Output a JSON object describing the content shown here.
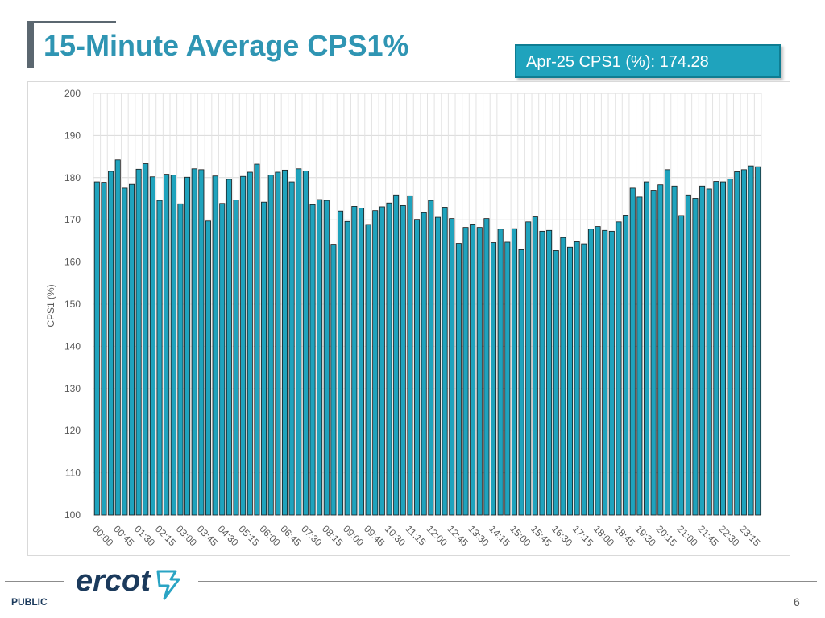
{
  "header": {
    "title": "15-Minute Average CPS1%",
    "summary": "Apr-25 CPS1 (%): 174.28"
  },
  "colors": {
    "title": "#2f95b3",
    "bar_fill": "#1fa3bd",
    "bar_stroke": "#1a1a1a",
    "summary_box": "#1fa3bd",
    "logo": "#1b3a5c",
    "logo_accent": "#2aa4c4"
  },
  "chart_data": {
    "type": "bar",
    "title": "",
    "xlabel": "",
    "ylabel": "CPS1 (%)",
    "ylim": [
      100,
      200
    ],
    "yticks": [
      100,
      110,
      120,
      130,
      140,
      150,
      160,
      170,
      180,
      190,
      200
    ],
    "grid": true,
    "legend": "none",
    "tick_labels": [
      "00:00",
      "00:45",
      "01:30",
      "02:15",
      "03:00",
      "03:45",
      "04:30",
      "05:15",
      "06:00",
      "06:45",
      "07:30",
      "08:15",
      "09:00",
      "09:45",
      "10:30",
      "11:15",
      "12:00",
      "12:45",
      "13:30",
      "14:15",
      "15:00",
      "15:45",
      "16:30",
      "17:15",
      "18:00",
      "18:45",
      "19:30",
      "20:15",
      "21:00",
      "21:45",
      "22:30",
      "23:15"
    ],
    "tick_every": 3,
    "categories": [
      "00:00",
      "00:15",
      "00:30",
      "00:45",
      "01:00",
      "01:15",
      "01:30",
      "01:45",
      "02:00",
      "02:15",
      "02:30",
      "02:45",
      "03:00",
      "03:15",
      "03:30",
      "03:45",
      "04:00",
      "04:15",
      "04:30",
      "04:45",
      "05:00",
      "05:15",
      "05:30",
      "05:45",
      "06:00",
      "06:15",
      "06:30",
      "06:45",
      "07:00",
      "07:15",
      "07:30",
      "07:45",
      "08:00",
      "08:15",
      "08:30",
      "08:45",
      "09:00",
      "09:15",
      "09:30",
      "09:45",
      "10:00",
      "10:15",
      "10:30",
      "10:45",
      "11:00",
      "11:15",
      "11:30",
      "11:45",
      "12:00",
      "12:15",
      "12:30",
      "12:45",
      "13:00",
      "13:15",
      "13:30",
      "13:45",
      "14:00",
      "14:15",
      "14:30",
      "14:45",
      "15:00",
      "15:15",
      "15:30",
      "15:45",
      "16:00",
      "16:15",
      "16:30",
      "16:45",
      "17:00",
      "17:15",
      "17:30",
      "17:45",
      "18:00",
      "18:15",
      "18:30",
      "18:45",
      "19:00",
      "19:15",
      "19:30",
      "19:45",
      "20:00",
      "20:15",
      "20:30",
      "20:45",
      "21:00",
      "21:15",
      "21:30",
      "21:45",
      "22:00",
      "22:15",
      "22:30",
      "22:45",
      "23:00",
      "23:15",
      "23:30",
      "23:45"
    ],
    "values": [
      179.0,
      178.9,
      181.5,
      184.2,
      177.5,
      178.4,
      182.0,
      183.3,
      180.2,
      174.6,
      180.8,
      180.6,
      173.8,
      180.1,
      182.1,
      181.9,
      169.7,
      180.4,
      173.9,
      179.6,
      174.7,
      180.3,
      181.3,
      183.2,
      174.2,
      180.6,
      181.3,
      181.8,
      179.0,
      182.1,
      181.6,
      173.6,
      174.8,
      174.6,
      164.2,
      172.1,
      169.6,
      173.2,
      172.8,
      168.9,
      172.2,
      173.1,
      174.0,
      175.9,
      173.4,
      175.7,
      170.1,
      171.7,
      174.6,
      170.6,
      173.0,
      170.3,
      164.4,
      168.2,
      169.0,
      168.2,
      170.3,
      164.6,
      167.8,
      164.7,
      167.9,
      162.9,
      169.5,
      170.7,
      167.3,
      167.5,
      162.7,
      165.8,
      163.5,
      164.8,
      164.3,
      167.8,
      168.4,
      167.5,
      167.3,
      169.5,
      171.1,
      177.5,
      175.4,
      179.0,
      177.0,
      178.3,
      181.9,
      178.0,
      171.0,
      175.9,
      175.1,
      178.0,
      177.3,
      179.1,
      179.0,
      179.7,
      181.4,
      181.9,
      182.8,
      182.6
    ]
  },
  "footer": {
    "label": "PUBLIC",
    "page_number": "6",
    "logo_text": "ercot"
  }
}
